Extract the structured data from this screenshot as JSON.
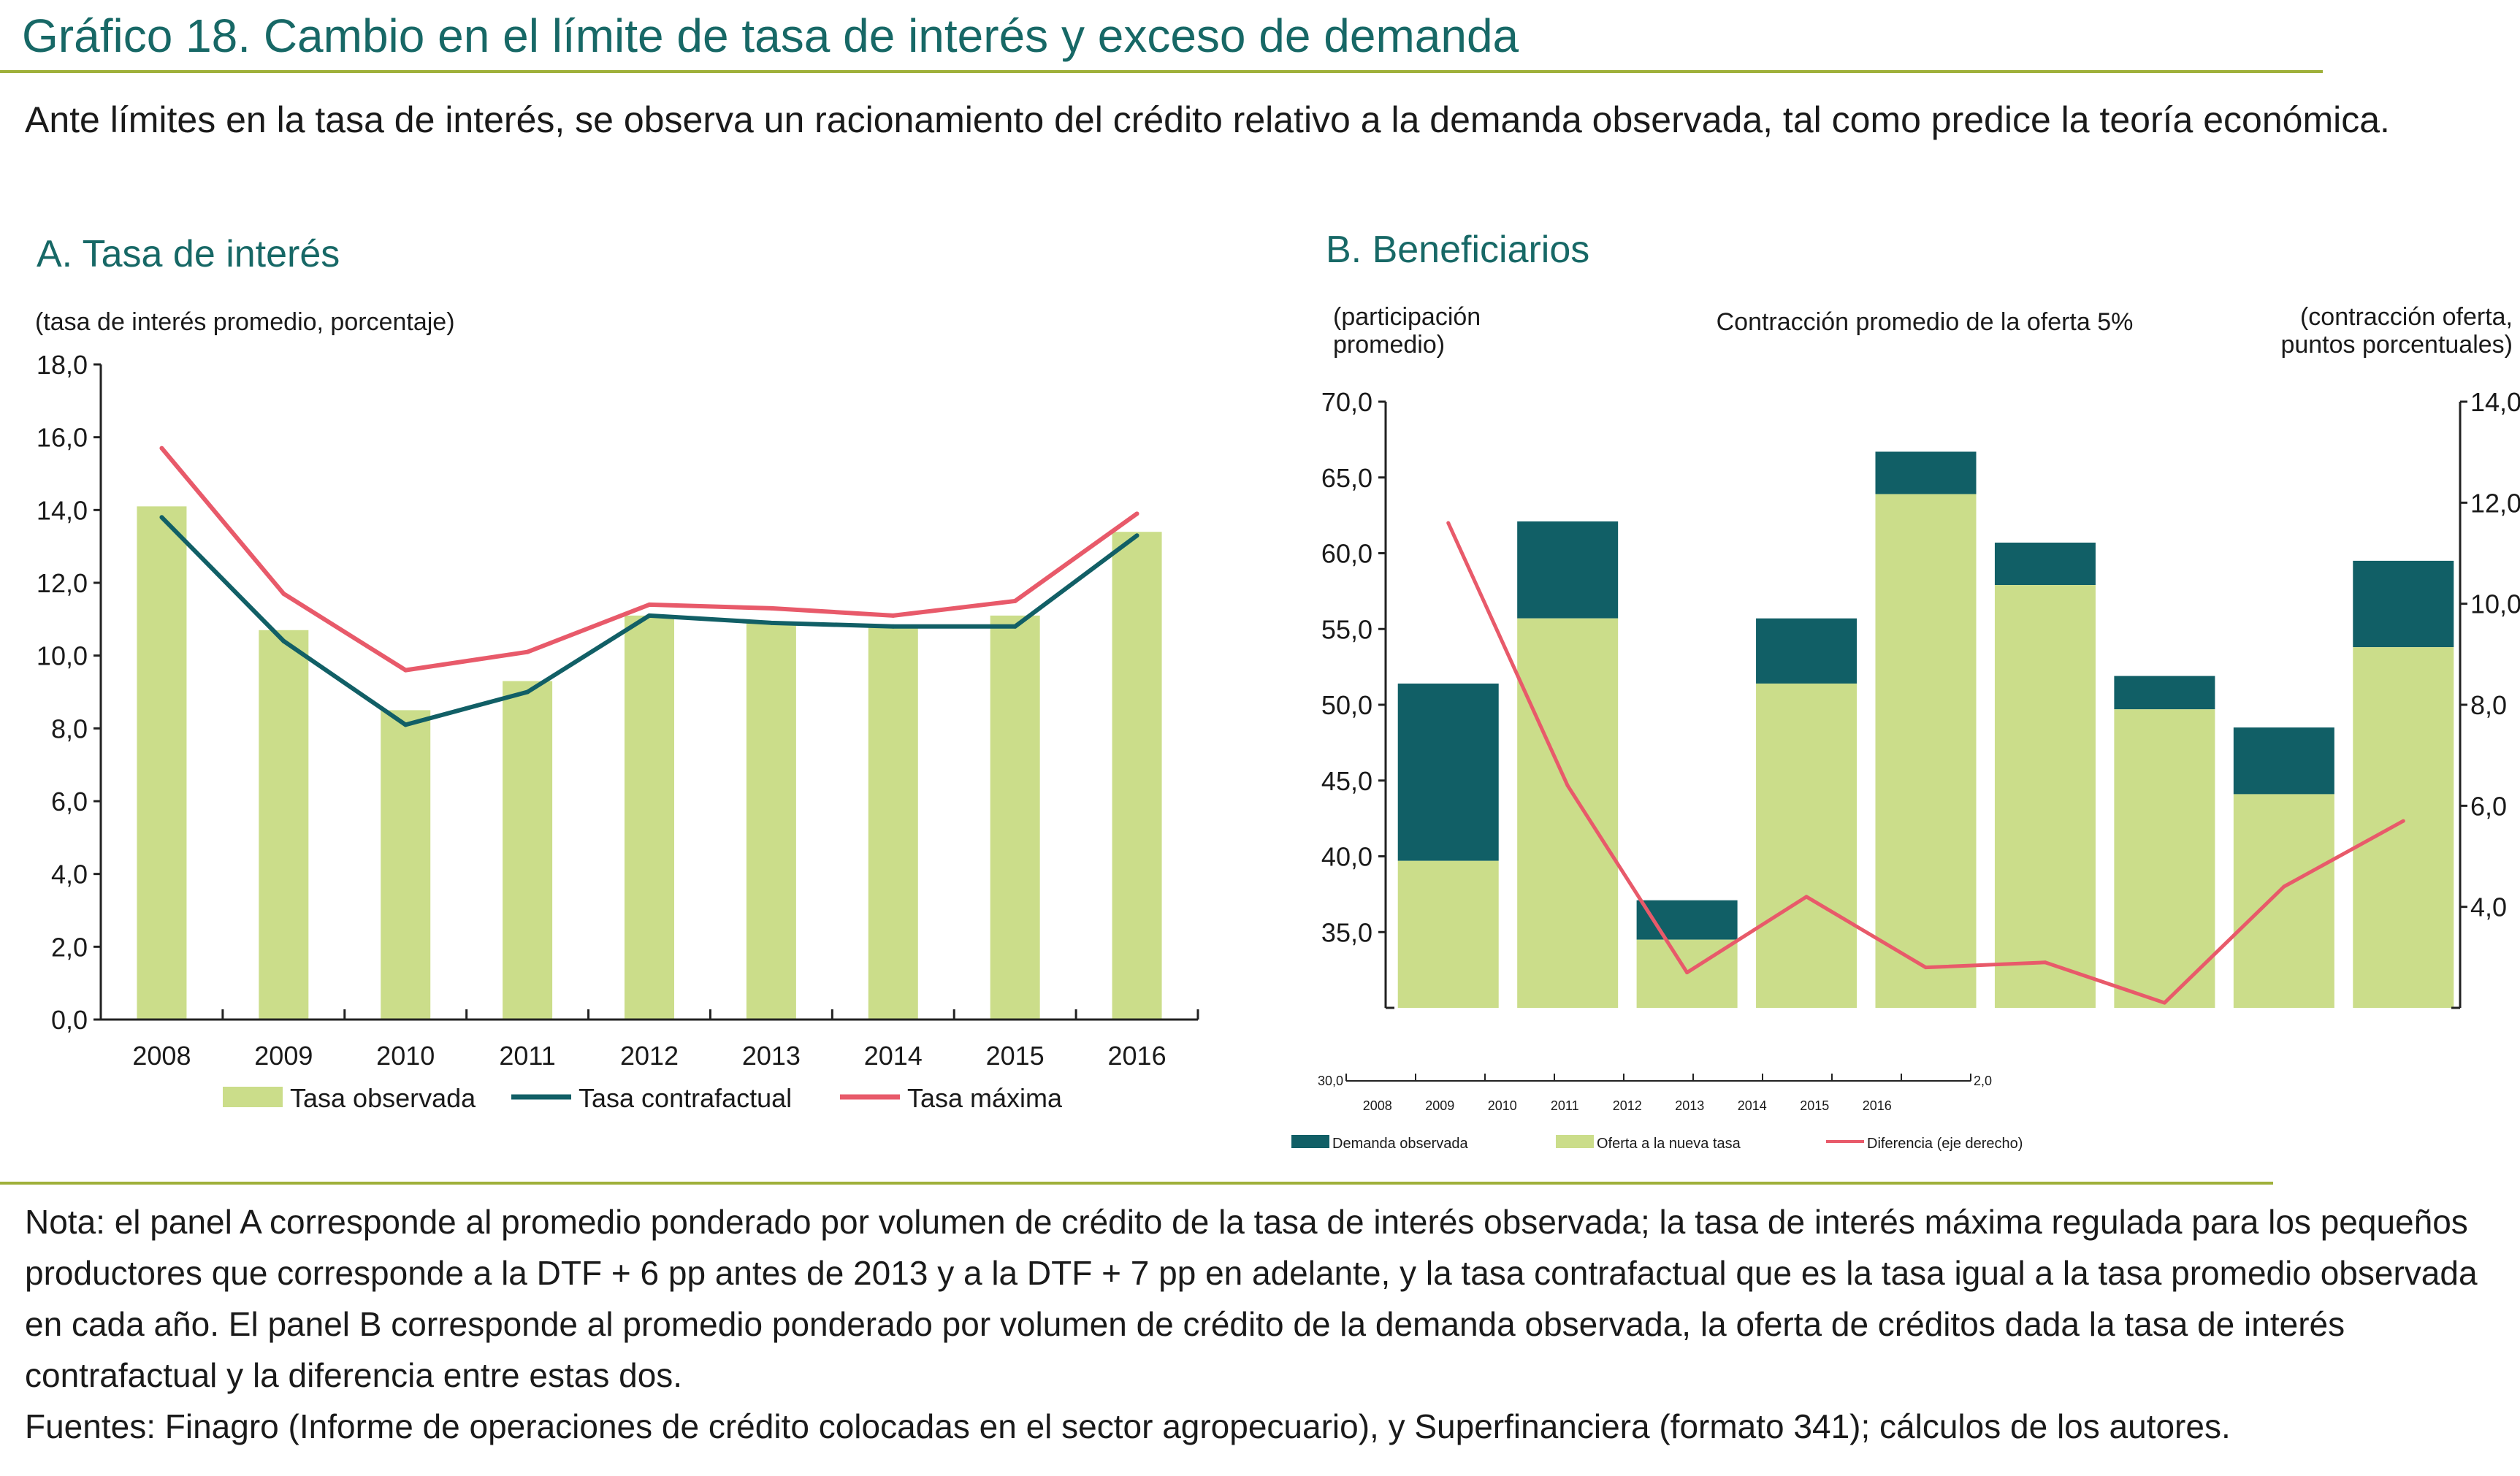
{
  "header": {
    "title": "Gráfico 18. Cambio en el límite de tasa de interés y exceso de demanda",
    "subtitle": "Ante límites en la tasa de interés, se observa un racionamiento del crédito relativo a la demanda observada, tal como predice la teoría económica."
  },
  "colors": {
    "title": "#176866",
    "rule": "#9fb03a",
    "bar_light": "#cbdd8a",
    "teal": "#115f66",
    "red": "#e85a6a"
  },
  "chart_data": [
    {
      "panel_title": "A. Tasa de interés",
      "type": "bar+line",
      "ylabel": "(tasa de interés promedio, porcentaje)",
      "ylim": [
        0,
        18
      ],
      "yticks": [
        "0,0",
        "2,0",
        "4,0",
        "6,0",
        "8,0",
        "10,0",
        "12,0",
        "14,0",
        "16,0",
        "18,0"
      ],
      "categories": [
        "2008",
        "2009",
        "2010",
        "2011",
        "2012",
        "2013",
        "2014",
        "2015",
        "2016"
      ],
      "series": [
        {
          "name": "Tasa observada",
          "kind": "bar",
          "color": "#cbdd8a",
          "values": [
            14.1,
            10.7,
            8.5,
            9.3,
            11.1,
            10.9,
            10.8,
            11.1,
            13.4
          ]
        },
        {
          "name": "Tasa contrafactual",
          "kind": "line",
          "color": "#115f66",
          "values": [
            13.8,
            10.4,
            8.1,
            9.0,
            11.1,
            10.9,
            10.8,
            10.8,
            13.3
          ]
        },
        {
          "name": "Tasa máxima",
          "kind": "line",
          "color": "#e85a6a",
          "values": [
            15.7,
            11.7,
            9.6,
            10.1,
            11.4,
            11.3,
            11.1,
            11.5,
            13.9
          ]
        }
      ],
      "legend": "bottom"
    },
    {
      "panel_title": "B. Beneficiarios",
      "type": "stacked-bar+line",
      "annotation": "Contracción promedio de la oferta 5%",
      "ylabel_left": [
        "(participación",
        "promedio)"
      ],
      "ylabel_right": [
        "(contracción oferta,",
        "puntos porcentuales)"
      ],
      "ylim_left": [
        30,
        70
      ],
      "ylim_right": [
        2,
        14
      ],
      "yticks_left": [
        "35,0",
        "40,0",
        "45,0",
        "50,0",
        "55,0",
        "60,0",
        "65,0",
        "70,0"
      ],
      "yticks_right": [
        "4,0",
        "6,0",
        "8,0",
        "10,0",
        "12,0",
        "14,0"
      ],
      "categories": [
        "2008",
        "2009",
        "2010",
        "2011",
        "2012",
        "2013",
        "2014",
        "2015",
        "2016"
      ],
      "series": [
        {
          "name": "Oferta a la nueva tasa",
          "kind": "bar",
          "color": "#cbdd8a",
          "values": [
            39.7,
            55.7,
            34.5,
            51.4,
            63.9,
            57.9,
            49.7,
            44.1,
            53.8
          ]
        },
        {
          "name": "Demanda observada",
          "kind": "bar-total",
          "color": "#115f66",
          "values": [
            51.4,
            62.1,
            37.1,
            55.7,
            66.7,
            60.7,
            51.9,
            48.5,
            59.5
          ]
        },
        {
          "name": "Diferencia (eje derecho)",
          "kind": "line",
          "axis": "right",
          "color": "#e85a6a",
          "values": [
            11.6,
            6.4,
            2.7,
            4.2,
            2.8,
            2.9,
            2.1,
            4.4,
            5.7
          ]
        }
      ],
      "mini_axis": {
        "left_label": "30,0",
        "right_label": "2,0"
      },
      "legend": "bottom"
    }
  ],
  "notes": {
    "nota": "Nota: el panel A corresponde al promedio ponderado por volumen de crédito de la tasa de interés observada; la tasa de interés máxima regulada para los pequeños productores que corresponde a la DTF + 6 pp antes de 2013 y a la DTF + 7 pp en adelante, y la tasa contrafactual que es la tasa igual a la tasa promedio observada en cada año. El panel B corresponde al promedio ponderado por volumen de crédito de la demanda observada, la oferta de créditos dada la tasa de interés contrafactual y la diferencia entre estas dos.",
    "fuentes": "Fuentes: Finagro (Informe de operaciones de crédito colocadas en el sector agropecuario), y Superfinanciera (formato 341); cálculos de los autores."
  }
}
